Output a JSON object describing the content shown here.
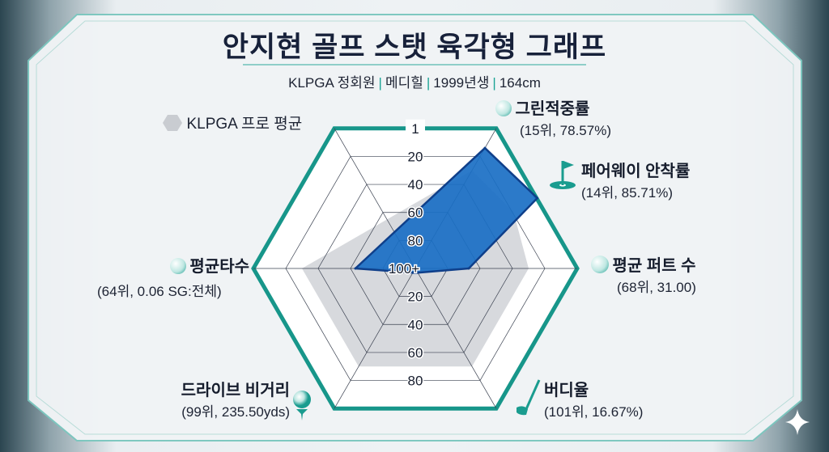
{
  "header": {
    "title": "안지현 골프 스탯 육각형 그래프",
    "subtitle_parts": [
      "KLPGA 정회원",
      "메디힐",
      "1999년생",
      "164cm"
    ],
    "separator": "|"
  },
  "legend": {
    "label": "KLPGA 프로 평균",
    "icon": "gray-hexagon-icon"
  },
  "colors": {
    "player": "#1a6fc4",
    "player_stroke": "#0f3f8a",
    "average": "#c9ccd1",
    "frame": "#17968a",
    "title": "#17213a"
  },
  "chart_data": {
    "type": "radar",
    "scale_note": "rank",
    "tick_labels_top": [
      "1",
      "20",
      "40",
      "60",
      "80",
      "100+"
    ],
    "tick_labels_bottom": [
      "20",
      "40",
      "60",
      "80"
    ],
    "axes": [
      {
        "name": "그린적중률",
        "detail": "(15위, 78.57%)",
        "rank": 15,
        "icon": "golf-ball-icon"
      },
      {
        "name": "페어웨이 안착률",
        "detail": "(14위, 85.71%)",
        "rank": 14,
        "icon": "golf-flag-icon"
      },
      {
        "name": "평균 퍼트 수",
        "detail": "(68위, 31.00)",
        "rank": 68,
        "icon": "golf-ball-icon"
      },
      {
        "name": "버디율",
        "detail": "(101위, 16.67%)",
        "rank": 101,
        "icon": "golf-club-icon"
      },
      {
        "name": "드라이브 비거리",
        "detail": "(99위, 235.50yds)",
        "rank": 99,
        "icon": "golf-ball-tee-icon"
      },
      {
        "name": "평균타수",
        "detail": "(64위, 0.06 SG:전체)",
        "rank": 64,
        "icon": "golf-ball-icon"
      }
    ],
    "series": [
      {
        "name": "KLPGA 프로 평균",
        "values": [
          31,
          31,
          31,
          31,
          31,
          31
        ]
      }
    ]
  }
}
